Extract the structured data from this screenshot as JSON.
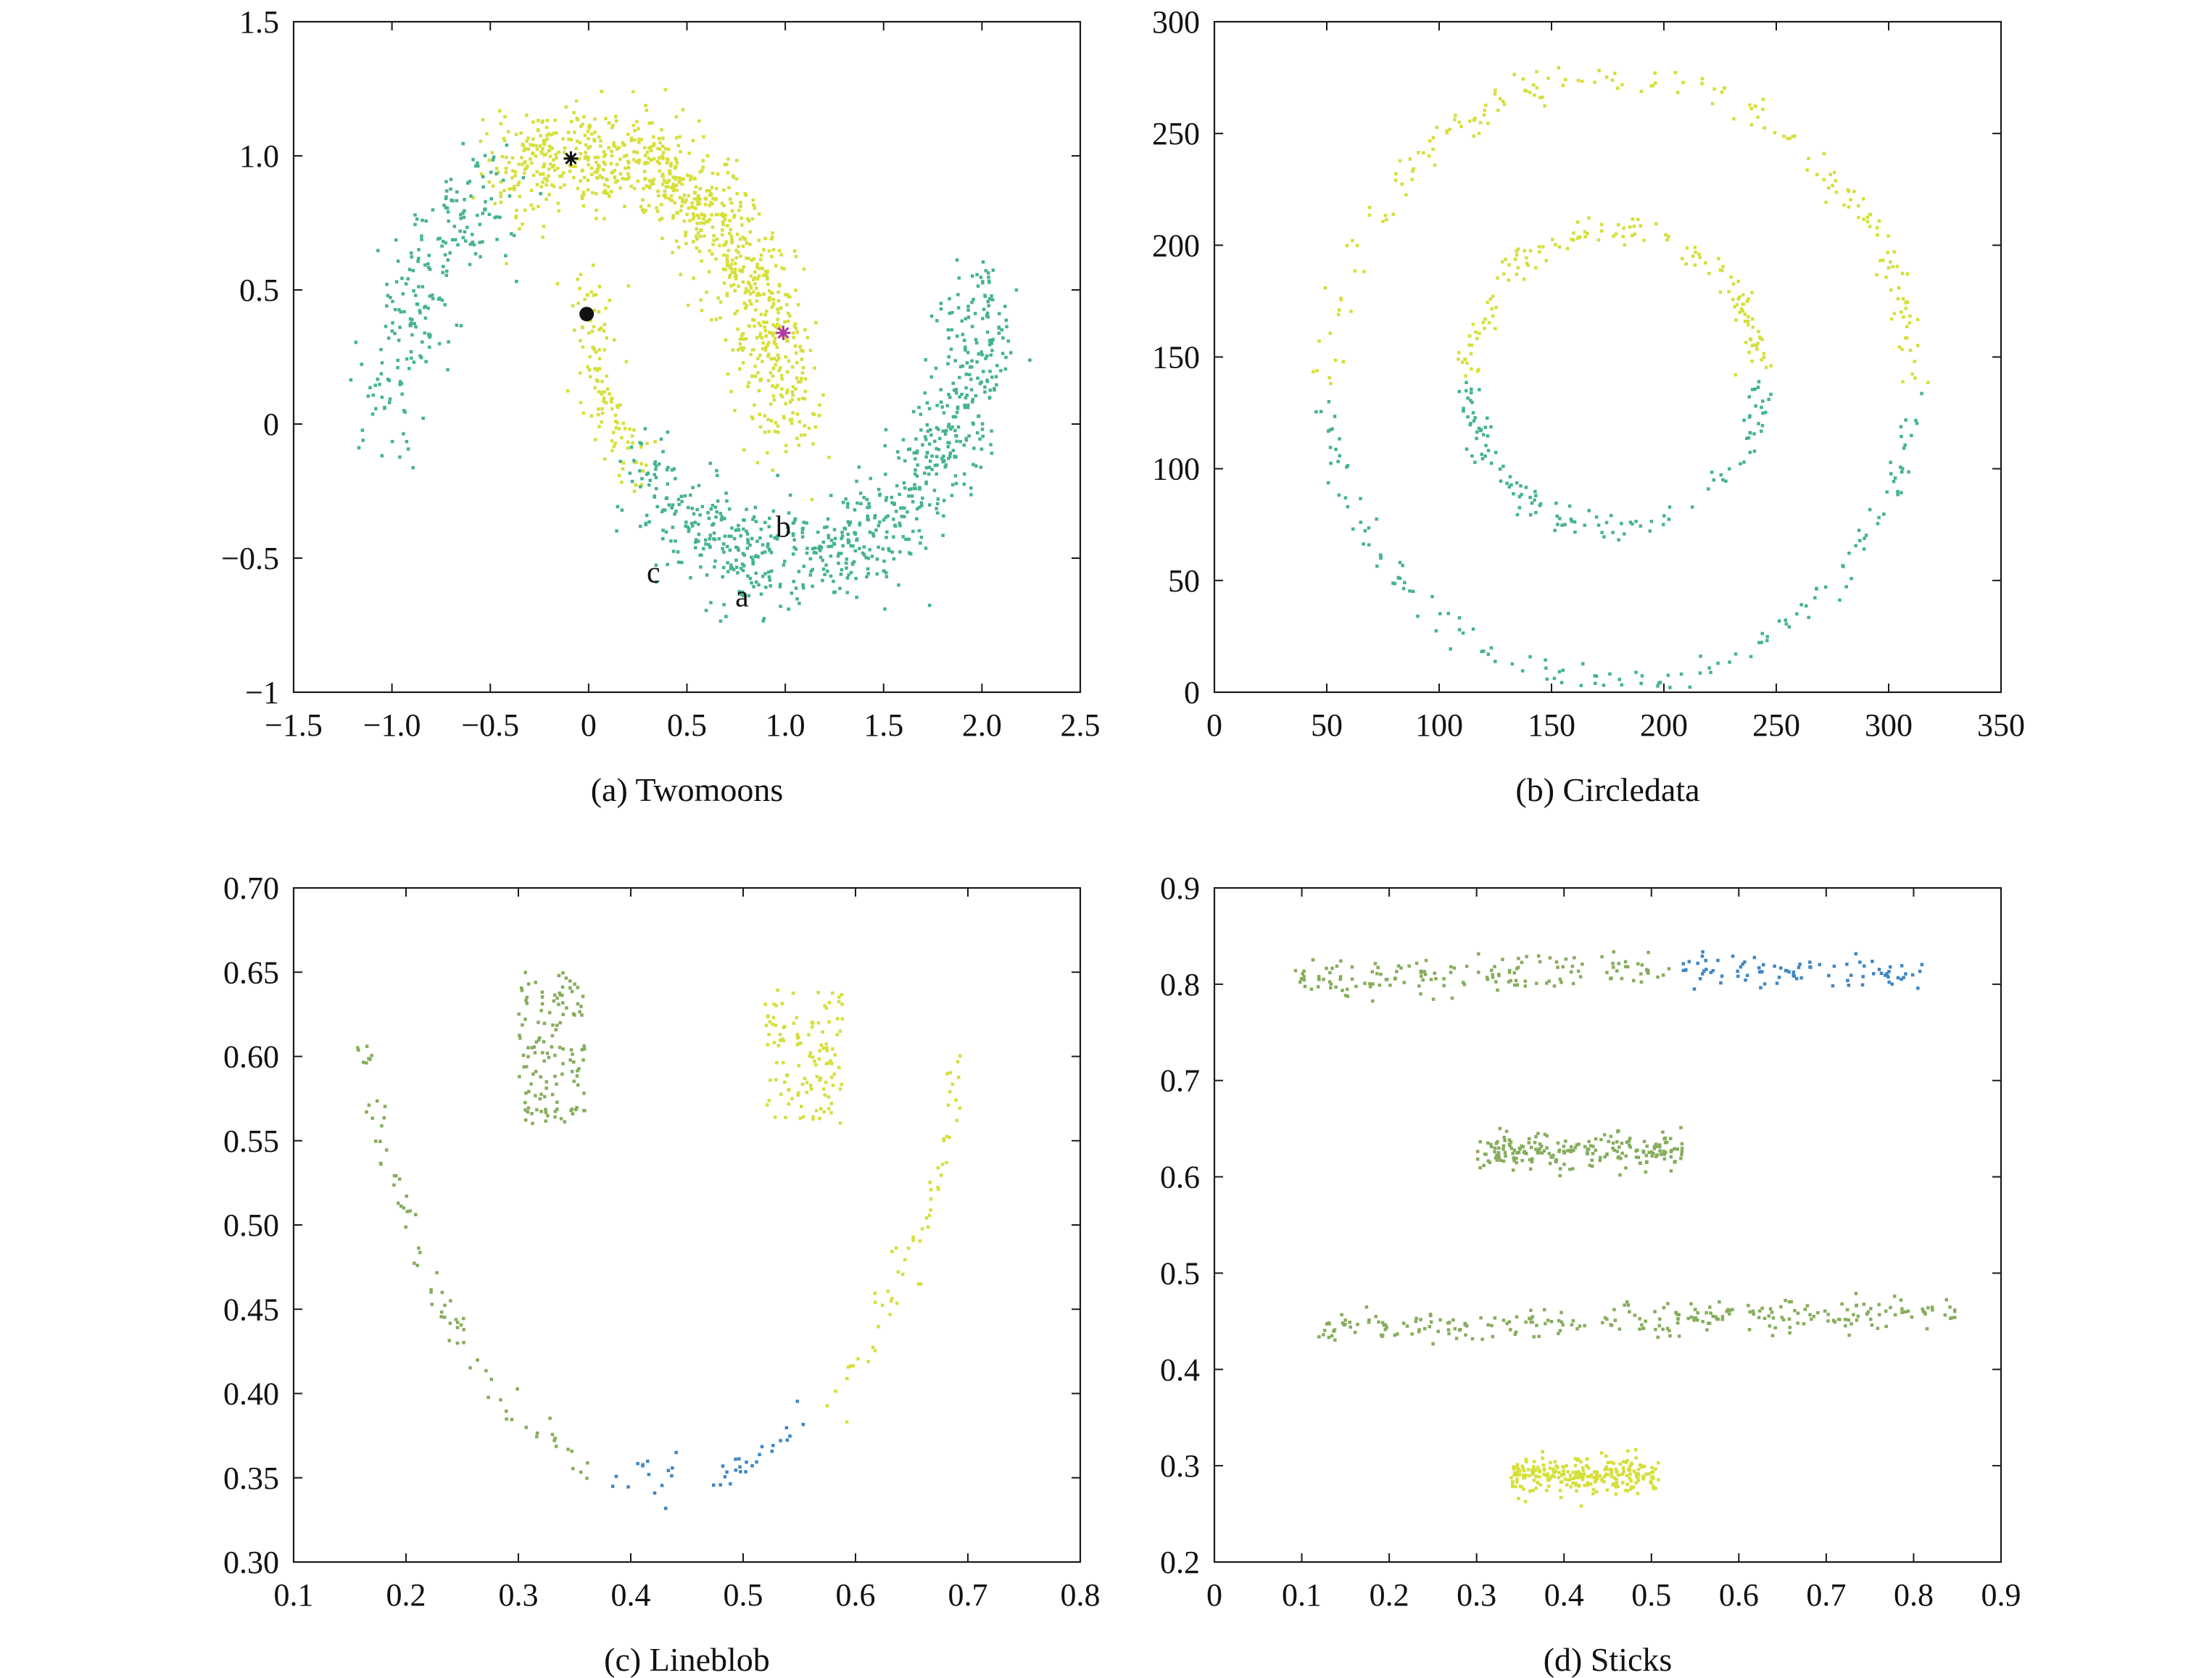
{
  "figure": {
    "colors": {
      "yellow": "#d6df3a",
      "teal": "#45b391",
      "green": "#86ad5c",
      "blue": "#3f86c4",
      "black": "#111111",
      "magenta": "#b03aa0"
    }
  },
  "chart_data": [
    {
      "panel": "a",
      "type": "scatter",
      "caption": "(a) Twomoons",
      "xlim": [
        -1.5,
        2.5
      ],
      "ylim": [
        -1,
        1.5
      ],
      "x_ticks": [
        -1.5,
        -1.0,
        -0.5,
        0,
        0.5,
        1.0,
        1.5,
        2.0,
        2.5
      ],
      "x_tick_labels": [
        "−1.5",
        "−1.0",
        "−0.5",
        "0",
        "0.5",
        "1.0",
        "1.5",
        "2.0",
        "2.5"
      ],
      "y_ticks": [
        -1,
        -0.5,
        0,
        0.5,
        1.0,
        1.5
      ],
      "y_tick_labels": [
        "−1",
        "−0.5",
        "0",
        "0.5",
        "1.0",
        "1.5"
      ],
      "grid": false,
      "series": [
        {
          "color": "yellow",
          "shape": "two_moons_upper",
          "count": 950,
          "noise": 0.1,
          "t_range": [
            0,
            2.0
          ]
        },
        {
          "color": "teal",
          "shape": "two_moons_upper",
          "count": 220,
          "noise": 0.1,
          "t_range": [
            2.0,
            3.1416
          ]
        },
        {
          "color": "yellow",
          "shape": "two_moons_lower",
          "count": 120,
          "noise": 0.06,
          "t_range": [
            0,
            0.75
          ]
        },
        {
          "color": "teal",
          "shape": "two_moons_lower",
          "count": 750,
          "noise": 0.1,
          "t_range": [
            0.75,
            3.1416
          ]
        }
      ],
      "markers": [
        {
          "symbol": "*",
          "x": -0.09,
          "y": 0.99,
          "color": "black"
        },
        {
          "symbol": "dot",
          "x": -0.01,
          "y": 0.41,
          "color": "black"
        },
        {
          "symbol": "*",
          "x": 0.99,
          "y": 0.34,
          "color": "magenta"
        }
      ],
      "annotations": [
        {
          "text": "a",
          "x": 0.78,
          "y": -0.68
        },
        {
          "text": "b",
          "x": 0.99,
          "y": -0.42
        },
        {
          "text": "c",
          "x": 0.33,
          "y": -0.59
        }
      ]
    },
    {
      "panel": "b",
      "type": "scatter",
      "caption": "(b) Circledata",
      "xlim": [
        0,
        350
      ],
      "ylim": [
        0,
        300
      ],
      "x_ticks": [
        0,
        50,
        100,
        150,
        200,
        250,
        300,
        350
      ],
      "x_tick_labels": [
        "0",
        "50",
        "100",
        "150",
        "200",
        "250",
        "300",
        "350"
      ],
      "y_ticks": [
        0,
        50,
        100,
        150,
        200,
        250,
        300
      ],
      "y_tick_labels": [
        "0",
        "50",
        "100",
        "150",
        "200",
        "250",
        "300"
      ],
      "grid": false,
      "series": [
        {
          "color": "yellow",
          "shape": "ring",
          "center": [
            180,
            140
          ],
          "radii": [
            130,
            135
          ],
          "angle_range": [
            -3,
            183
          ],
          "noise": 3.5,
          "count": 190
        },
        {
          "color": "teal",
          "shape": "ring",
          "center": [
            180,
            140
          ],
          "radii": [
            130,
            135
          ],
          "angle_range": [
            183,
            357
          ],
          "noise": 3.5,
          "count": 150
        },
        {
          "color": "yellow",
          "shape": "ring",
          "center": [
            178,
            140
          ],
          "radii": [
            65,
            67
          ],
          "angle_range": [
            3,
            178
          ],
          "noise": 3,
          "count": 150
        },
        {
          "color": "teal",
          "shape": "ring",
          "center": [
            178,
            140
          ],
          "radii": [
            65,
            67
          ],
          "angle_range": [
            182,
            360
          ],
          "noise": 3,
          "count": 130
        }
      ],
      "markers": [],
      "annotations": []
    },
    {
      "panel": "c",
      "type": "scatter",
      "caption": "(c) Lineblob",
      "xlim": [
        0.1,
        0.8
      ],
      "ylim": [
        0.3,
        0.7
      ],
      "x_ticks": [
        0.1,
        0.2,
        0.3,
        0.4,
        0.5,
        0.6,
        0.7,
        0.8
      ],
      "x_tick_labels": [
        "0.1",
        "0.2",
        "0.3",
        "0.4",
        "0.5",
        "0.6",
        "0.7",
        "0.8"
      ],
      "y_ticks": [
        0.3,
        0.35,
        0.4,
        0.45,
        0.5,
        0.55,
        0.6,
        0.65,
        0.7
      ],
      "y_tick_labels": [
        "0.30",
        "0.35",
        "0.40",
        "0.45",
        "0.50",
        "0.55",
        "0.60",
        "0.65",
        "0.70"
      ],
      "grid": false,
      "series": [
        {
          "color": "green",
          "shape": "box",
          "x_range": [
            0.3,
            0.36
          ],
          "y_range": [
            0.56,
            0.65
          ],
          "count": 130
        },
        {
          "color": "yellow",
          "shape": "box",
          "x_range": [
            0.52,
            0.59
          ],
          "y_range": [
            0.56,
            0.64
          ],
          "count": 120
        },
        {
          "color": "green",
          "shape": "curve",
          "points": [
            [
              0.16,
              0.61
            ],
            [
              0.18,
              0.55
            ],
            [
              0.2,
              0.5
            ],
            [
              0.22,
              0.47
            ],
            [
              0.25,
              0.43
            ],
            [
              0.28,
              0.4
            ],
            [
              0.31,
              0.38
            ],
            [
              0.34,
              0.365
            ],
            [
              0.37,
              0.355
            ]
          ],
          "noise": 0.007,
          "count": 80
        },
        {
          "color": "blue",
          "shape": "curve",
          "points": [
            [
              0.38,
              0.355
            ],
            [
              0.42,
              0.35
            ],
            [
              0.46,
              0.347
            ],
            [
              0.5,
              0.355
            ],
            [
              0.53,
              0.37
            ],
            [
              0.56,
              0.385
            ]
          ],
          "noise": 0.006,
          "count": 40
        },
        {
          "color": "yellow",
          "shape": "curve",
          "points": [
            [
              0.58,
              0.395
            ],
            [
              0.61,
              0.43
            ],
            [
              0.64,
              0.47
            ],
            [
              0.66,
              0.5
            ],
            [
              0.68,
              0.55
            ],
            [
              0.69,
              0.61
            ]
          ],
          "noise": 0.008,
          "count": 60
        }
      ],
      "markers": [],
      "annotations": []
    },
    {
      "panel": "d",
      "type": "scatter",
      "caption": "(d) Sticks",
      "xlim": [
        0,
        0.9
      ],
      "ylim": [
        0.2,
        0.9
      ],
      "x_ticks": [
        0,
        0.1,
        0.2,
        0.3,
        0.4,
        0.5,
        0.6,
        0.7,
        0.8,
        0.9
      ],
      "x_tick_labels": [
        "0",
        "0.1",
        "0.2",
        "0.3",
        "0.4",
        "0.5",
        "0.6",
        "0.7",
        "0.8",
        "0.9"
      ],
      "y_ticks": [
        0.2,
        0.3,
        0.4,
        0.5,
        0.6,
        0.7,
        0.8,
        0.9
      ],
      "y_tick_labels": [
        "0.2",
        "0.3",
        "0.4",
        "0.5",
        "0.6",
        "0.7",
        "0.8",
        "0.9"
      ],
      "grid": false,
      "series": [
        {
          "color": "green",
          "shape": "band",
          "x_range": [
            0.09,
            0.52
          ],
          "y_start": 0.805,
          "y_end": 0.815,
          "noise": 0.009,
          "count": 150
        },
        {
          "color": "blue",
          "shape": "band",
          "x_range": [
            0.52,
            0.81
          ],
          "y_start": 0.815,
          "y_end": 0.812,
          "noise": 0.008,
          "count": 85
        },
        {
          "color": "green",
          "shape": "band",
          "x_range": [
            0.3,
            0.54
          ],
          "y_start": 0.625,
          "y_end": 0.628,
          "noise": 0.009,
          "count": 210
        },
        {
          "color": "green",
          "shape": "band",
          "x_range": [
            0.12,
            0.85
          ],
          "y_start": 0.443,
          "y_end": 0.462,
          "noise": 0.008,
          "count": 260
        },
        {
          "color": "yellow",
          "shape": "band",
          "x_range": [
            0.34,
            0.51
          ],
          "y_start": 0.29,
          "y_end": 0.29,
          "noise": 0.009,
          "count": 260
        }
      ],
      "markers": [],
      "annotations": []
    }
  ]
}
